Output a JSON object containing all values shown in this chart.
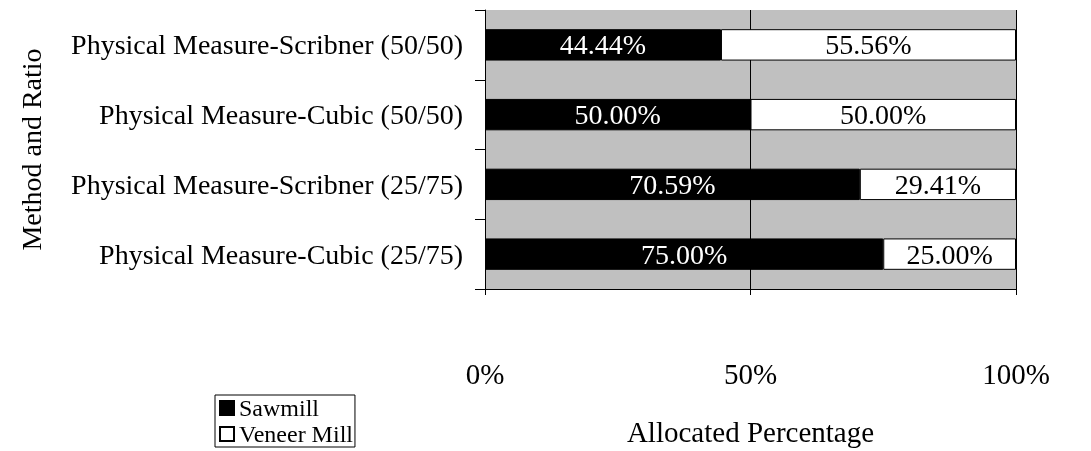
{
  "chart_data": {
    "type": "bar",
    "orientation": "horizontal",
    "stacked": true,
    "categories": [
      "Physical Measure-Scribner (50/50)",
      "Physical Measure-Cubic (50/50)",
      "Physical Measure-Scribner (25/75)",
      "Physical Measure-Cubic (25/75)"
    ],
    "series": [
      {
        "name": "Sawmill",
        "color": "#000000",
        "values": [
          44.44,
          50.0,
          70.59,
          75.0
        ],
        "value_labels": [
          "44.44%",
          "50.00%",
          "70.59%",
          "75.00%"
        ]
      },
      {
        "name": "Veneer Mill",
        "color": "#ffffff",
        "values": [
          55.56,
          50.0,
          29.41,
          25.0
        ],
        "value_labels": [
          "55.56%",
          "50.00%",
          "29.41%",
          "25.00%"
        ]
      }
    ],
    "xlabel": "Allocated Percentage",
    "ylabel": "Method and Ratio",
    "xlim": [
      0,
      100
    ],
    "xticks": [
      {
        "value": 0,
        "label": "0%"
      },
      {
        "value": 50,
        "label": "50%"
      },
      {
        "value": 100,
        "label": "100%"
      }
    ],
    "grid": "x",
    "legend": "bottom left"
  }
}
